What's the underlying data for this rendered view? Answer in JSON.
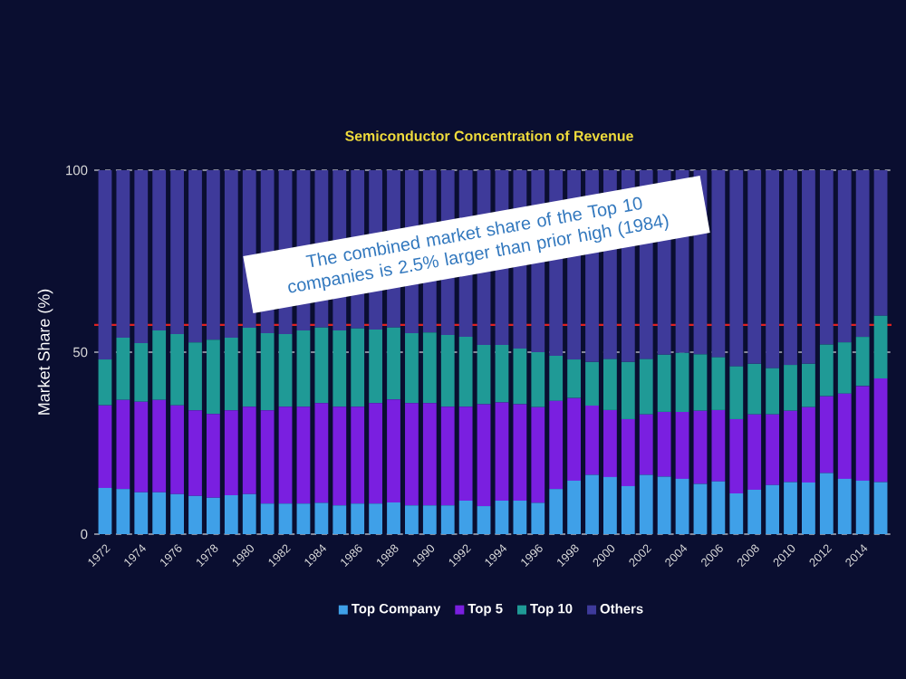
{
  "chart_data": {
    "type": "bar",
    "stacked": true,
    "title": "Semiconductor Concentration of Revenue",
    "ylabel": "Market Share (%)",
    "categories": [
      "1972",
      null,
      "1974",
      null,
      "1976",
      null,
      "1978",
      null,
      "1980",
      null,
      "1982",
      null,
      "1984",
      null,
      "1986",
      null,
      "1988",
      null,
      "1990",
      null,
      "1992",
      null,
      "1994",
      null,
      "1996",
      null,
      "1998",
      null,
      "2000",
      null,
      "2002",
      null,
      "2004",
      null,
      "2006",
      null,
      "2008",
      null,
      "2010",
      null,
      "2012",
      null,
      "2014",
      null
    ],
    "series": [
      {
        "name": "Top Company",
        "color": "#3fa0e8",
        "values": [
          12.7,
          12.4,
          11.5,
          11.5,
          11,
          10.5,
          10,
          10.7,
          11,
          8.4,
          8.4,
          8.4,
          8.6,
          7.9,
          8.4,
          8.4,
          8.7,
          7.9,
          7.9,
          7.9,
          9.2,
          7.7,
          9.2,
          9.2,
          8.6,
          12.4,
          14.7,
          16.3,
          15.7,
          13.2,
          16.3,
          15.8,
          15.2,
          13.8,
          14.5,
          11.2,
          12.2,
          13.5,
          14.3,
          14.2,
          16.8,
          15.2,
          14.7,
          14.3
        ]
      },
      {
        "name": "Top 5",
        "color": "#7a1fe0",
        "values": [
          22.7,
          24.5,
          24.9,
          25.4,
          24.4,
          23.5,
          23,
          23.3,
          24,
          25.6,
          26.6,
          26.6,
          27.4,
          27.1,
          26.6,
          27.6,
          28.3,
          28.1,
          28.1,
          27.1,
          25.8,
          28,
          27,
          26.5,
          26.3,
          24.2,
          22.7,
          19,
          18.4,
          18.4,
          16.6,
          17.8,
          18.4,
          20.1,
          19.6,
          20.4,
          20.7,
          19.4,
          19.6,
          20.7,
          21.1,
          23.4,
          26,
          28.5
        ]
      },
      {
        "name": "Top 10",
        "color": "#1f9a96",
        "values": [
          12.6,
          17.1,
          16.1,
          19.1,
          19.6,
          18.7,
          20.4,
          20,
          21.7,
          21.2,
          20,
          21,
          20.8,
          21,
          21.5,
          20.2,
          19.8,
          19.2,
          19.4,
          19.7,
          19.2,
          16.3,
          15.8,
          15.3,
          15.1,
          12.4,
          10.6,
          12,
          14,
          15.7,
          15.2,
          15.7,
          16.2,
          15.5,
          14.5,
          14.5,
          13.9,
          12.7,
          12.6,
          11.9,
          14.2,
          14.1,
          13.5,
          17.2
        ]
      },
      {
        "name": "Others",
        "color": "#3e3a9a",
        "values": [
          52,
          46,
          47.5,
          44,
          45,
          47.3,
          46.6,
          46,
          43.3,
          44.8,
          45,
          44,
          43.2,
          44,
          43.5,
          43.8,
          43.2,
          44.8,
          44.6,
          45.3,
          45.8,
          48,
          48,
          49,
          50,
          51,
          52,
          52.7,
          51.9,
          52.7,
          51.9,
          50.7,
          50.2,
          50.6,
          51.4,
          53.9,
          53.2,
          54.4,
          53.5,
          53.2,
          47.9,
          47.3,
          45.8,
          40
        ]
      }
    ],
    "ylim": [
      0,
      100
    ],
    "yticks": [
      0,
      50,
      100
    ],
    "grid": "y",
    "legend": "bottom",
    "ref_lines": [
      {
        "axis": "y",
        "value": 57.5,
        "color": "#e02020"
      }
    ],
    "annotations": [
      "The combined market share of the Top 10 companies is 2.5% larger than prior high (1984)"
    ]
  }
}
